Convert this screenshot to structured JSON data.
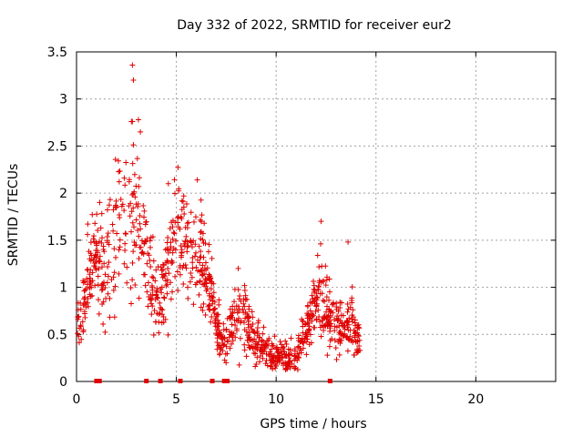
{
  "chart_data": {
    "type": "scatter",
    "title": "Day 332 of 2022, SRMTID for receiver eur2",
    "xlabel": "GPS time / hours",
    "ylabel": "SRMTID / TECUs",
    "xlim": [
      0,
      24
    ],
    "ylim": [
      0,
      3.5
    ],
    "xticks": [
      0,
      5,
      10,
      15,
      20
    ],
    "xtick_labels": [
      "0",
      "5",
      "10",
      "15",
      "20"
    ],
    "yticks": [
      0,
      0.5,
      1,
      1.5,
      2,
      2.5,
      3,
      3.5
    ],
    "ytick_labels": [
      "0",
      "0.5",
      "1",
      "1.5",
      "2",
      "2.5",
      "3",
      "3.5"
    ],
    "grid": true,
    "series": [
      {
        "name": "SRMTID",
        "color": "#e00000",
        "marker": "plus",
        "envelope_x": [
          0.0,
          0.3,
          0.6,
          1.0,
          1.4,
          1.8,
          2.2,
          2.6,
          3.0,
          3.4,
          3.8,
          4.2,
          4.6,
          5.0,
          5.4,
          5.8,
          6.2,
          6.6,
          7.0,
          7.4,
          7.8,
          8.2,
          8.6,
          9.0,
          9.4,
          9.8,
          10.2,
          10.6,
          11.0,
          11.4,
          11.8,
          12.2,
          12.6,
          13.0,
          13.4,
          13.8,
          14.2
        ],
        "envelope_center": [
          0.6,
          0.7,
          1.1,
          1.4,
          1.1,
          1.5,
          1.9,
          1.7,
          1.7,
          1.5,
          1.1,
          0.9,
          1.3,
          1.6,
          1.5,
          1.4,
          1.3,
          1.1,
          0.6,
          0.4,
          0.6,
          0.7,
          0.6,
          0.4,
          0.35,
          0.3,
          0.28,
          0.25,
          0.25,
          0.45,
          0.75,
          1.0,
          0.75,
          0.6,
          0.5,
          0.65,
          0.4
        ],
        "envelope_spread": [
          0.15,
          0.2,
          0.3,
          0.35,
          0.4,
          0.5,
          0.5,
          0.5,
          0.5,
          0.45,
          0.3,
          0.25,
          0.35,
          0.35,
          0.35,
          0.35,
          0.35,
          0.3,
          0.2,
          0.15,
          0.2,
          0.25,
          0.2,
          0.15,
          0.12,
          0.12,
          0.1,
          0.1,
          0.1,
          0.15,
          0.25,
          0.3,
          0.25,
          0.2,
          0.15,
          0.2,
          0.1
        ],
        "point_count": 1100,
        "outliers": [
          {
            "x": 2.8,
            "y": 3.36
          },
          {
            "x": 2.85,
            "y": 3.2
          },
          {
            "x": 2.75,
            "y": 2.76
          },
          {
            "x": 2.8,
            "y": 2.76
          },
          {
            "x": 3.1,
            "y": 2.78
          },
          {
            "x": 3.2,
            "y": 2.65
          },
          {
            "x": 12.25,
            "y": 1.7
          },
          {
            "x": 13.6,
            "y": 1.48
          },
          {
            "x": 6.05,
            "y": 2.14
          },
          {
            "x": 4.6,
            "y": 2.1
          },
          {
            "x": 8.1,
            "y": 1.2
          }
        ],
        "baseline_markers_x": [
          1.0,
          1.15,
          3.5,
          4.2,
          5.2,
          6.8,
          7.4,
          7.55,
          12.7
        ]
      }
    ]
  }
}
